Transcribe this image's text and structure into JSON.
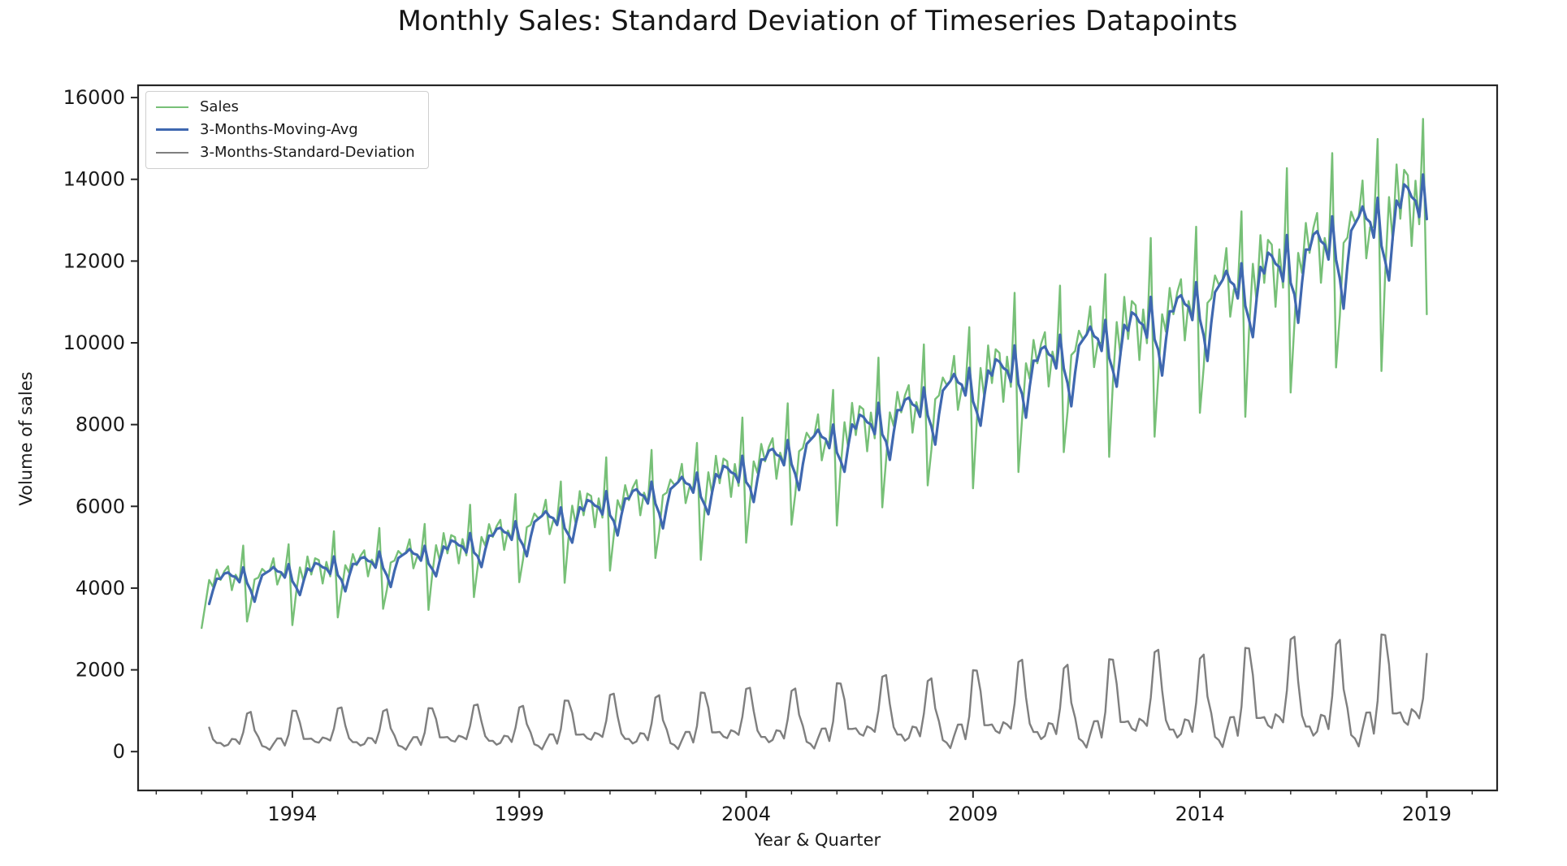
{
  "figure": {
    "title": "Monthly Sales: Standard Deviation of Timeseries Datapoints",
    "xlabel": "Year & Quarter",
    "ylabel": "Volume of sales"
  },
  "chart_data": {
    "type": "line",
    "title": "Monthly Sales: Standard Deviation of Timeseries Datapoints",
    "xlabel": "Year & Quarter",
    "ylabel": "Volume of sales",
    "grid": false,
    "legend_position": "upper-left",
    "x_start_year": 1992,
    "x_start_month": 1,
    "x_frequency": "monthly",
    "x_end": "2019-01",
    "xlim": [
      1990.6,
      2020.55
    ],
    "ylim": [
      -950,
      16300
    ],
    "x_ticks_major": [
      1994,
      1999,
      2004,
      2009,
      2014,
      2019
    ],
    "x_ticks_minor_years": [
      1991,
      1992,
      1993,
      1995,
      1996,
      1997,
      1998,
      2000,
      2001,
      2002,
      2003,
      2005,
      2006,
      2007,
      2008,
      2010,
      2011,
      2012,
      2013,
      2015,
      2016,
      2017,
      2018,
      2020
    ],
    "y_ticks": [
      0,
      2000,
      4000,
      6000,
      8000,
      10000,
      12000,
      14000,
      16000
    ],
    "axis_color": "#262626",
    "series": [
      {
        "name": "Sales",
        "color": "#77c077",
        "line_width": 2.4,
        "values": [
          3024,
          3612,
          4200,
          4032,
          4452,
          4200,
          4410,
          4536,
          3948,
          4326,
          4158,
          5040,
          3182,
          3612,
          4214,
          4257,
          4472,
          4386,
          4429,
          4730,
          4085,
          4343,
          4343,
          5074,
          3094,
          3890,
          4508,
          4155,
          4774,
          4332,
          4729,
          4685,
          4111,
          4641,
          4287,
          5392,
          3283,
          3922,
          4560,
          4378,
          4834,
          4560,
          4788,
          4925,
          4286,
          4697,
          4514,
          5472,
          3493,
          3965,
          4626,
          4673,
          4909,
          4814,
          4862,
          5192,
          4484,
          4767,
          4767,
          5570,
          3465,
          4356,
          5049,
          4653,
          5346,
          4851,
          5297,
          5247,
          4604,
          5198,
          4802,
          6039,
          3780,
          4515,
          5250,
          5040,
          5565,
          5250,
          5513,
          5670,
          4935,
          5408,
          5198,
          6300,
          4144,
          4704,
          5488,
          5544,
          5824,
          5712,
          5768,
          6160,
          5320,
          5656,
          5656,
          6608,
          4130,
          5192,
          6018,
          5546,
          6372,
          5782,
          6313,
          6254,
          5487,
          6195,
          5723,
          7198,
          4428,
          5289,
          6150,
          5904,
          6519,
          6150,
          6458,
          6642,
          5781,
          6335,
          6089,
          7380,
          4736,
          5376,
          6272,
          6336,
          6656,
          6528,
          6592,
          7040,
          6080,
          6464,
          6464,
          7552,
          4690,
          5896,
          6834,
          6298,
          7236,
          6566,
          7169,
          7102,
          6231,
          7035,
          6499,
          8174,
          5112,
          6106,
          7100,
          6816,
          7526,
          7100,
          7455,
          7668,
          6674,
          7313,
          7029,
          8520,
          5550,
          6300,
          7350,
          7425,
          7800,
          7650,
          7725,
          8250,
          7125,
          7575,
          7575,
          8850,
          5530,
          6952,
          8058,
          7426,
          8532,
          7742,
          8453,
          8374,
          7347,
          8295,
          7663,
          9638,
          5976,
          7138,
          8300,
          7968,
          8798,
          8300,
          8715,
          8964,
          7802,
          8549,
          8217,
          9960,
          6512,
          7392,
          8624,
          8712,
          9152,
          8976,
          9064,
          9680,
          8360,
          8888,
          8888,
          10384,
          6440,
          8096,
          9384,
          8648,
          9936,
          9016,
          9844,
          9752,
          8556,
          9660,
          8924,
          11224,
          6840,
          8170,
          9500,
          9120,
          10070,
          9500,
          9975,
          10260,
          8930,
          9785,
          9405,
          11400,
          7326,
          8316,
          9702,
          9801,
          10296,
          10098,
          10197,
          10890,
          9405,
          9999,
          9999,
          11682,
          7210,
          9064,
          10506,
          9682,
          11124,
          10094,
          11021,
          10918,
          9579,
          10815,
          9991,
          12566,
          7704,
          9202,
          10700,
          10272,
          11342,
          10700,
          11235,
          11556,
          10058,
          11021,
          10593,
          12840,
          8288,
          9408,
          10976,
          11088,
          11648,
          11424,
          11536,
          12320,
          10640,
          11312,
          11312,
          13216,
          8190,
          10296,
          11934,
          10998,
          12636,
          11466,
          12519,
          12402,
          10881,
          12285,
          11349,
          14274,
          8784,
          10492,
          12200,
          11712,
          12932,
          12200,
          12810,
          13176,
          11468,
          12566,
          12078,
          14640,
          9398,
          10668,
          12446,
          12573,
          13208,
          12954,
          13081,
          13970,
          12065,
          12827,
          12827,
          14986,
          9310,
          11704,
          13566,
          12502,
          14364,
          13034,
          14231,
          14098,
          12369,
          13965,
          12901,
          15480,
          10700
        ]
      },
      {
        "name": "3-Months-Moving-Avg",
        "color": "#3f68b0",
        "line_width": 3.2,
        "derived": "rolling_mean",
        "window": 3,
        "source_series": "Sales"
      },
      {
        "name": "3-Months-Standard-Deviation",
        "color": "#7f7f7f",
        "line_width": 2.4,
        "derived": "rolling_std",
        "window": 3,
        "source_series": "Sales"
      }
    ]
  }
}
